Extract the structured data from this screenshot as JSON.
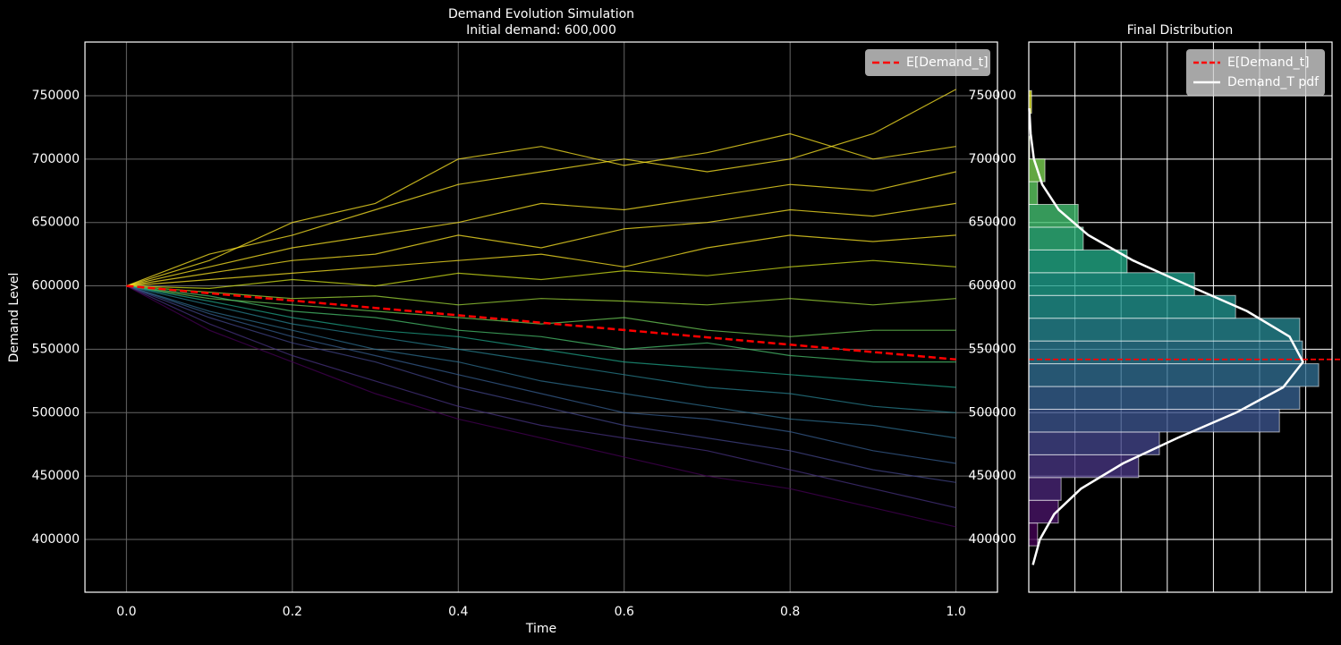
{
  "chart_data": [
    {
      "type": "line",
      "title": "Demand Evolution Simulation",
      "subtitle": "Initial demand: 600,000",
      "xlabel": "Time",
      "ylabel": "Demand Level",
      "x": [
        0,
        0.1,
        0.2,
        0.3,
        0.4,
        0.5,
        0.6,
        0.7,
        0.8,
        0.9,
        1
      ],
      "xlim": [
        -0.05,
        1.05
      ],
      "xticks": [
        {
          "value": 0,
          "label": "0.0"
        },
        0.2,
        0.4,
        0.6,
        0.8,
        {
          "value": 1,
          "label": "1.0"
        }
      ],
      "ylim": [
        358400,
        792300
      ],
      "yticks": [
        400000,
        450000,
        500000,
        550000,
        600000,
        650000,
        700000,
        750000
      ],
      "grid": true,
      "legend": "upper right",
      "paths": [
        {
          "color": "#fde725",
          "values": [
            600000,
            625000,
            640000,
            660000,
            680000,
            690000,
            700000,
            690000,
            700000,
            720000,
            755000
          ]
        },
        {
          "color": "#fde725",
          "values": [
            600000,
            620000,
            650000,
            665000,
            700000,
            710000,
            695000,
            705000,
            720000,
            700000,
            710000
          ]
        },
        {
          "color": "#fde725",
          "values": [
            600000,
            615000,
            630000,
            640000,
            650000,
            665000,
            660000,
            670000,
            680000,
            675000,
            690000
          ]
        },
        {
          "color": "#fde725",
          "values": [
            600000,
            610000,
            620000,
            625000,
            640000,
            630000,
            645000,
            650000,
            660000,
            655000,
            665000
          ]
        },
        {
          "color": "#fde725",
          "values": [
            600000,
            605000,
            610000,
            615000,
            620000,
            625000,
            615000,
            630000,
            640000,
            635000,
            640000
          ]
        },
        {
          "color": "#d2e21b",
          "values": [
            600000,
            598000,
            605000,
            600000,
            610000,
            605000,
            612000,
            608000,
            615000,
            620000,
            615000
          ]
        },
        {
          "color": "#a0da39",
          "values": [
            600000,
            595000,
            590000,
            592000,
            585000,
            590000,
            588000,
            585000,
            590000,
            585000,
            590000
          ]
        },
        {
          "color": "#6ece58",
          "values": [
            600000,
            590000,
            585000,
            580000,
            575000,
            570000,
            575000,
            565000,
            560000,
            565000,
            565000
          ]
        },
        {
          "color": "#4ac16d",
          "values": [
            600000,
            592000,
            580000,
            575000,
            565000,
            560000,
            550000,
            555000,
            545000,
            540000,
            540000
          ]
        },
        {
          "color": "#1fa187",
          "values": [
            600000,
            588000,
            575000,
            565000,
            560000,
            550000,
            540000,
            535000,
            530000,
            525000,
            520000
          ]
        },
        {
          "color": "#277f8e",
          "values": [
            600000,
            585000,
            570000,
            560000,
            550000,
            540000,
            530000,
            520000,
            515000,
            505000,
            500000
          ]
        },
        {
          "color": "#2e6e8e",
          "values": [
            600000,
            580000,
            565000,
            550000,
            540000,
            525000,
            515000,
            505000,
            495000,
            490000,
            480000
          ]
        },
        {
          "color": "#365c8d",
          "values": [
            600000,
            578000,
            560000,
            545000,
            530000,
            515000,
            500000,
            495000,
            485000,
            470000,
            460000
          ]
        },
        {
          "color": "#414487",
          "values": [
            600000,
            575000,
            555000,
            540000,
            520000,
            505000,
            490000,
            480000,
            470000,
            455000,
            445000
          ]
        },
        {
          "color": "#46327e",
          "values": [
            600000,
            570000,
            545000,
            525000,
            505000,
            490000,
            480000,
            470000,
            455000,
            440000,
            425000
          ]
        },
        {
          "color": "#440154",
          "values": [
            600000,
            565000,
            540000,
            515000,
            495000,
            480000,
            465000,
            450000,
            440000,
            425000,
            410000
          ]
        }
      ],
      "series": [
        {
          "name": "E[Demand_t]",
          "color": "#ff0000",
          "values": [
            600000,
            594200,
            588400,
            582600,
            576800,
            571000,
            565200,
            559400,
            553600,
            547800,
            542000
          ]
        }
      ]
    },
    {
      "type": "hbar-histogram",
      "title": "Final Distribution",
      "bins": [
        395000,
        412950,
        430900,
        448850,
        466800,
        484750,
        502700,
        520650,
        538600,
        556550,
        574500,
        592450,
        610400,
        628350,
        646300,
        664250,
        682200,
        700150,
        718100,
        736050,
        754000
      ],
      "counts": [
        0.19,
        0.64,
        0.7,
        2.38,
        2.83,
        5.43,
        5.87,
        6.28,
        5.93,
        5.87,
        4.48,
        3.59,
        2.13,
        1.18,
        1.07,
        0.19,
        0.35,
        0.02,
        0,
        0.06
      ],
      "colors": [
        "#440154",
        "#481467",
        "#482576",
        "#463480",
        "#414487",
        "#3b528b",
        "#355f8d",
        "#2f6c8e",
        "#2a788e",
        "#25848e",
        "#21918c",
        "#1e9c89",
        "#22a884",
        "#2fb47c",
        "#44bf70",
        "#5ec962",
        "#7ad151",
        "#9bd93c",
        "#bddf26",
        "#dfe318"
      ],
      "xlim": [
        0,
        6.57
      ],
      "xticks": [
        1,
        2,
        3,
        4,
        5,
        6
      ],
      "ylim": [
        358400,
        792300
      ],
      "yticks": [
        400000,
        450000,
        500000,
        550000,
        600000,
        650000,
        700000,
        750000
      ],
      "grid": true,
      "legend": "upper right",
      "hline": {
        "name": "E[Demand_t]",
        "value": 542000,
        "color": "#ff0000"
      },
      "pdf": {
        "name": "Demand_T pdf",
        "color": "#ffffff",
        "y": [
          380000,
          400000,
          420000,
          440000,
          460000,
          480000,
          500000,
          520000,
          540000,
          560000,
          580000,
          600000,
          620000,
          640000,
          660000,
          680000,
          700000,
          720000,
          740000
        ],
        "values": [
          0.09,
          0.24,
          0.55,
          1.13,
          2.04,
          3.22,
          4.49,
          5.51,
          5.94,
          5.65,
          4.73,
          3.48,
          2.26,
          1.29,
          0.65,
          0.29,
          0.11,
          0.04,
          0.01
        ]
      }
    }
  ]
}
